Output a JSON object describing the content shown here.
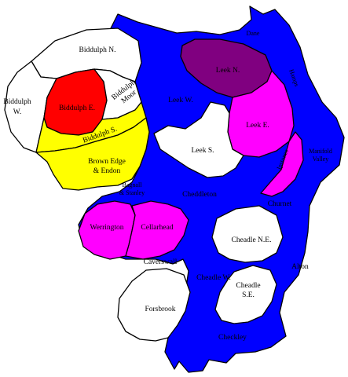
{
  "colors": {
    "white": "#ffffff",
    "blue": "#0000ff",
    "red": "#ff0000",
    "yellow": "#ffff00",
    "purple": "#800080",
    "magenta": "#ff00ff",
    "outline": "#000000"
  },
  "wards": {
    "biddulph_n": "Biddulph N.",
    "biddulph_w": [
      "Biddulph",
      "W."
    ],
    "biddulph_e": "Biddulph E.",
    "biddulph_moor": [
      "Biddulph",
      "Moor"
    ],
    "biddulph_s": "Biddulph S.",
    "brown_edge": [
      "Brown Edge",
      "& Endon"
    ],
    "leek_n": "Leek N.",
    "leek_w": "Leek W.",
    "leek_e": "Leek E.",
    "leek_s": "Leek S.",
    "ipstones": "Ipstones",
    "manifold": [
      "Manifold",
      "Valley"
    ],
    "dane": "Dane",
    "hamps": "Hamps",
    "bagnall": [
      "Bagnall",
      "& Stanley"
    ],
    "cheddleton": "Cheddleton",
    "churnet": "Churnet",
    "werrington": "Werrington",
    "cellarhead": "Cellarhead",
    "caverswall": "Caverswall",
    "cheadle_ne": "Cheadle N.E.",
    "cheadle_w": "Cheadle W.",
    "cheadle_se": [
      "Cheadle",
      "S.E."
    ],
    "alton": "Alton",
    "forsbrook": "Forsbrook",
    "checkley": "Checkley"
  }
}
